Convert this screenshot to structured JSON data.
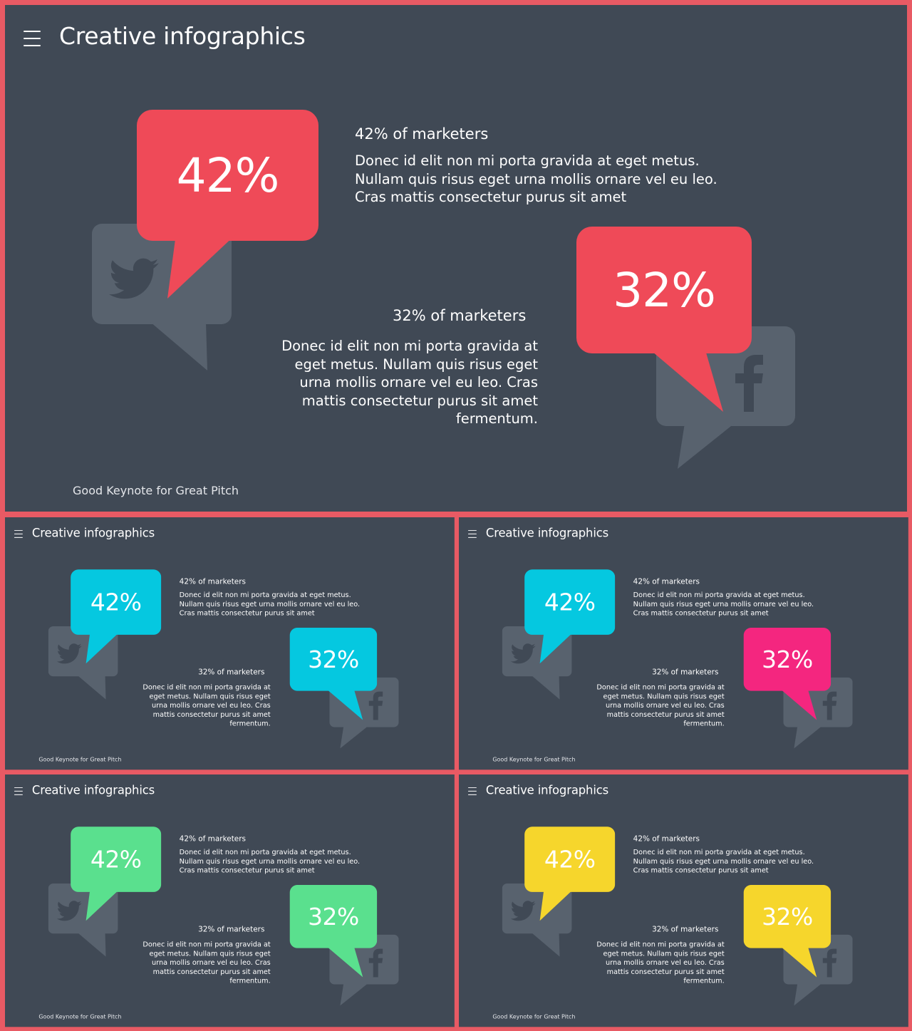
{
  "slide": {
    "title": "Creative infographics",
    "footer": "Good Keynote for Great Pitch",
    "stat1": {
      "value": "42%",
      "heading": "42% of marketers",
      "body": "Donec id elit non mi porta gravida at eget metus. Nullam quis risus eget urna mollis ornare vel eu leo. Cras mattis consectetur purus sit amet",
      "icon": "twitter-bird-icon"
    },
    "stat2": {
      "value": "32%",
      "heading": "32% of marketers",
      "body": "Donec id elit non mi porta gravida at eget metus. Nullam quis risus eget urna mollis ornare vel eu leo. Cras mattis consectetur purus sit amet fermentum.",
      "icon": "facebook-f-icon"
    }
  },
  "variants": [
    {
      "name": "main",
      "color1": "#ef4a58",
      "color2": "#ef4a58"
    },
    {
      "name": "cyan",
      "color1": "#05c8e0",
      "color2": "#05c8e0"
    },
    {
      "name": "cyan-pink",
      "color1": "#05c8e0",
      "color2": "#f4267f"
    },
    {
      "name": "green",
      "color1": "#5ae08e",
      "color2": "#5ae08e"
    },
    {
      "name": "yellow",
      "color1": "#f6d62c",
      "color2": "#f6d62c"
    }
  ],
  "colors": {
    "background": "#404955",
    "frame": "#e85a64",
    "icon_bubble": "#58626e",
    "icon_glyph": "#404955"
  }
}
